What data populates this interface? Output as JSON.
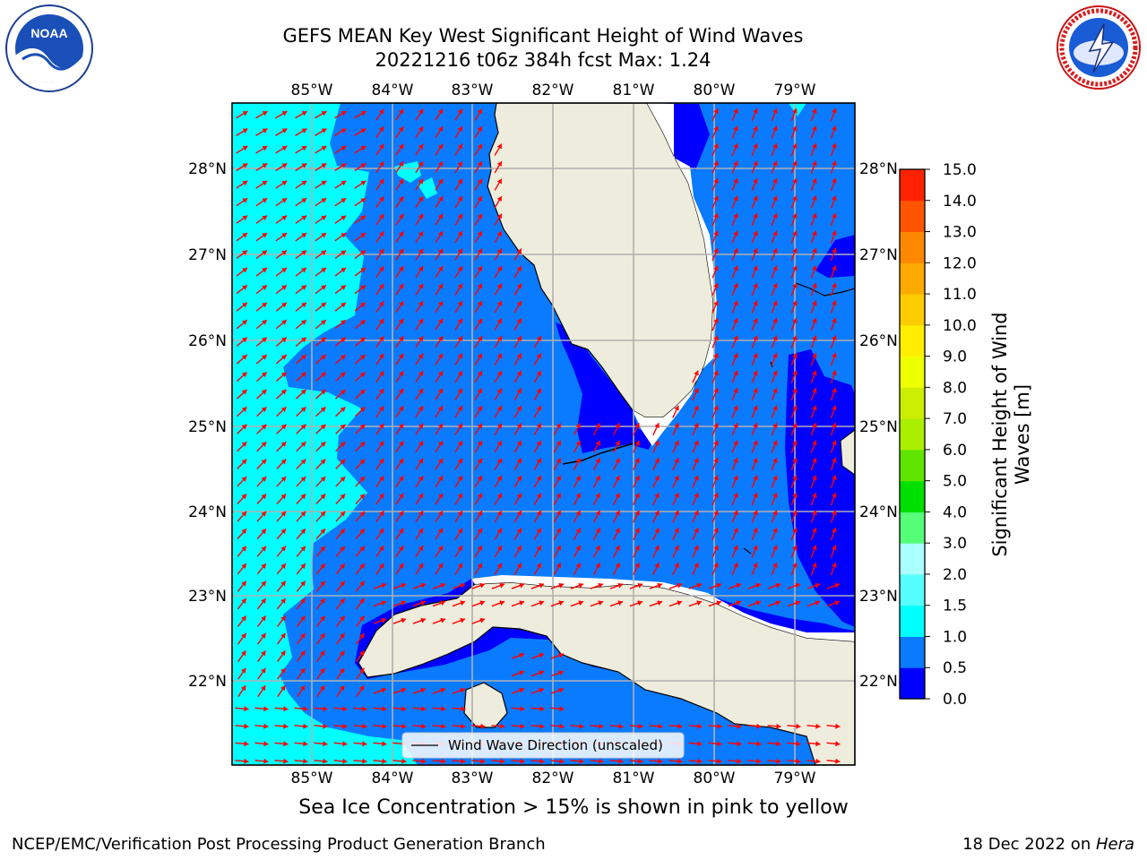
{
  "header": {
    "title_line1": "GEFS MEAN Key West Significant Height of Wind Waves",
    "title_line2": "20221216 t06z 384h fcst   Max: 1.24"
  },
  "logos": {
    "left": {
      "icon": "noaa-logo",
      "text": "NOAA",
      "ring_text": "NATIONAL OCEANIC AND ATMOSPHERIC ADMINISTRATION · U.S. DEPARTMENT OF COMMERCE"
    },
    "right": {
      "icon": "nws-logo",
      "ring_text": "NATIONAL WEATHER SERVICE"
    }
  },
  "map": {
    "lon_labels": [
      "85°W",
      "84°W",
      "83°W",
      "82°W",
      "81°W",
      "80°W",
      "79°W"
    ],
    "lat_labels": [
      "28°N",
      "27°N",
      "26°N",
      "25°N",
      "24°N",
      "23°N",
      "22°N"
    ],
    "legend_label": "Wind Wave Direction (unscaled)",
    "colors": {
      "land": "#eeecdc",
      "band_0_0_5": "#0000ff",
      "band_0_5_1_0": "#0a7bff",
      "band_1_0_1_5": "#00ffff",
      "arrow": "#ff0000",
      "grid": "#b0b0b0"
    }
  },
  "colorbar": {
    "label": "Significant Height of Wind Waves [m]",
    "ticks": [
      "15.0",
      "14.0",
      "13.0",
      "12.0",
      "11.0",
      "10.0",
      "9.0",
      "8.0",
      "7.0",
      "6.0",
      "5.0",
      "4.0",
      "3.0",
      "2.0",
      "1.5",
      "1.0",
      "0.5",
      "0.0"
    ],
    "colors": [
      "#0000ff",
      "#0a7bff",
      "#00ffff",
      "#55ffff",
      "#aaffff",
      "#55ff77",
      "#00e000",
      "#5fe600",
      "#aaee00",
      "#ccee00",
      "#eeff00",
      "#ffee00",
      "#ffcc00",
      "#ffaa00",
      "#ff8800",
      "#ff5500",
      "#ff2200"
    ]
  },
  "footer": {
    "ice_note": "Sea Ice Concentration > 15% is shown in pink to yellow",
    "left": "NCEP/EMC/Verification Post Processing Product Generation Branch",
    "right_date": "18 Dec 2022 on ",
    "right_machine": "Hera"
  }
}
